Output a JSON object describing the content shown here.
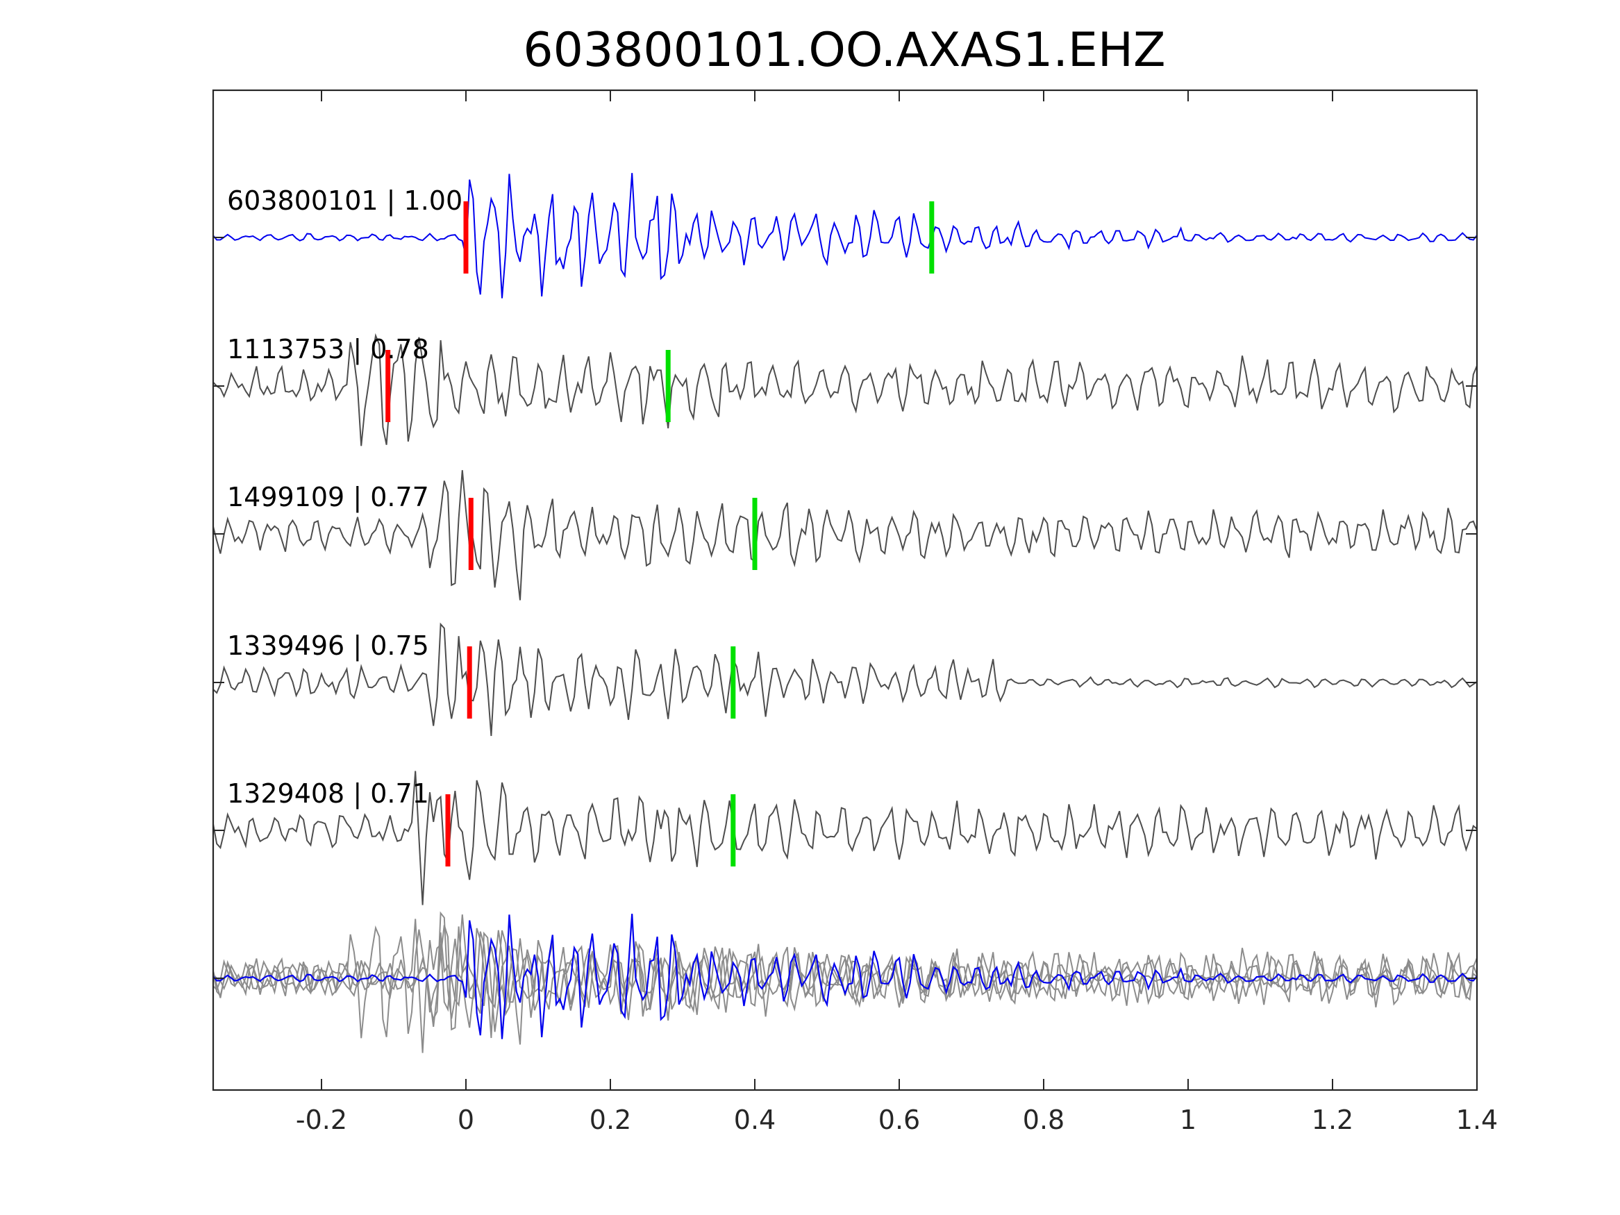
{
  "chart_data": {
    "type": "line",
    "title": "603800101.OO.AXAS1.EHZ",
    "xlabel": "",
    "ylabel": "",
    "xlim": [
      -0.35,
      1.4
    ],
    "xticks": [
      -0.2,
      0,
      0.2,
      0.4,
      0.6,
      0.8,
      1,
      1.2,
      1.4
    ],
    "xtick_labels": [
      "-0.2",
      "0",
      "0.2",
      "0.4",
      "0.6",
      "0.8",
      "1",
      "1.2",
      "1.4"
    ],
    "grid": false,
    "legend": "none",
    "colors": {
      "reference": "#0000ee",
      "match": "#4d4d4d",
      "overlay_match": "#8c8c8c",
      "p_pick": "#ff0000",
      "s_pick": "#00e000"
    },
    "traces": [
      {
        "label": "603800101 | 1.00",
        "event": "603800101",
        "cc": "1.00",
        "reference": true,
        "p_pick": 0.0,
        "s_pick": 0.645,
        "onset": 0.0,
        "coda_end": 1.0
      },
      {
        "label": "1113753 | 0.78",
        "event": "1113753",
        "cc": "0.78",
        "reference": false,
        "p_pick": -0.108,
        "s_pick": 0.28,
        "onset": -0.11,
        "coda_end": 1.4
      },
      {
        "label": "1499109 | 0.77",
        "event": "1499109",
        "cc": "0.77",
        "reference": false,
        "p_pick": 0.007,
        "s_pick": 0.4,
        "onset": 0.0,
        "coda_end": 1.4
      },
      {
        "label": "1339496 | 0.75",
        "event": "1339496",
        "cc": "0.75",
        "reference": false,
        "p_pick": 0.005,
        "s_pick": 0.37,
        "onset": 0.0,
        "coda_end": 0.75
      },
      {
        "label": "1329408 | 0.71",
        "event": "1329408",
        "cc": "0.71",
        "reference": false,
        "p_pick": -0.025,
        "s_pick": 0.37,
        "onset": -0.02,
        "coda_end": 1.4
      }
    ],
    "overlay": {
      "description_hidden": true,
      "includes": [
        "603800101",
        "1113753",
        "1499109",
        "1339496",
        "1329408"
      ]
    }
  }
}
